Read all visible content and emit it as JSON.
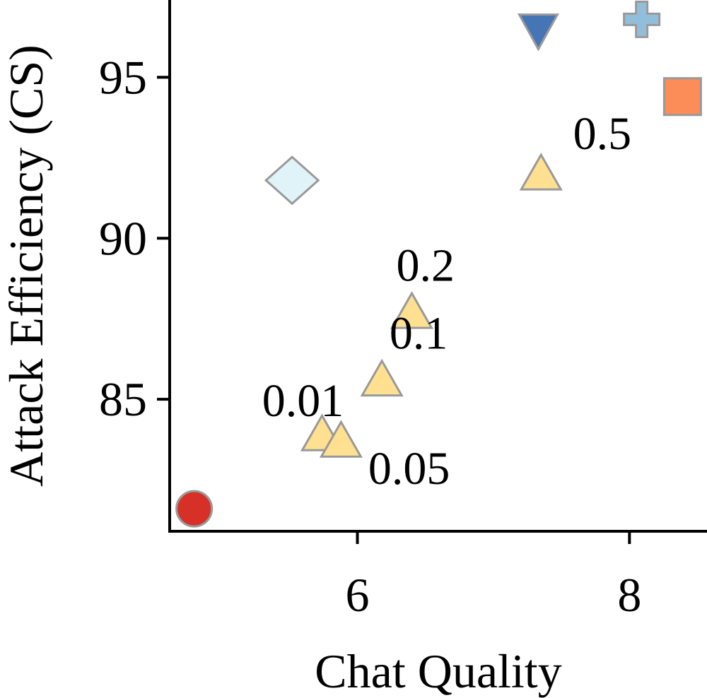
{
  "chart_data": {
    "type": "scatter",
    "xlabel": "Chat Quality",
    "ylabel": "Attack Efficiency (CS)",
    "xlim": [
      4.62,
      8.57
    ],
    "ylim": [
      80.9,
      97.4
    ],
    "x_ticks": [
      6,
      8
    ],
    "y_ticks": [
      85,
      90,
      95
    ],
    "x_tick_labels": [
      "6",
      "8"
    ],
    "y_tick_labels": [
      "85",
      "90",
      "95"
    ],
    "grid": false,
    "points": [
      {
        "x": 4.8,
        "y": 81.6,
        "marker": "circle",
        "color": "#d73027"
      },
      {
        "x": 5.52,
        "y": 91.8,
        "marker": "diamond",
        "color": "#e0f3f8"
      },
      {
        "x": 7.33,
        "y": 96.4,
        "marker": "triangle-down",
        "color": "#4575b4"
      },
      {
        "x": 8.09,
        "y": 96.8,
        "marker": "plus",
        "color": "#91bfdb"
      },
      {
        "x": 8.39,
        "y": 94.4,
        "marker": "square",
        "color": "#fc8d59"
      },
      {
        "x": 5.74,
        "y": 83.9,
        "marker": "triangle-up",
        "color": "#fee090",
        "label": "0.01"
      },
      {
        "x": 5.88,
        "y": 83.7,
        "marker": "triangle-up",
        "color": "#fee090",
        "label": "0.05"
      },
      {
        "x": 6.18,
        "y": 85.6,
        "marker": "triangle-up",
        "color": "#fee090",
        "label": "0.1"
      },
      {
        "x": 6.4,
        "y": 87.7,
        "marker": "triangle-up",
        "color": "#fee090",
        "label": "0.2"
      },
      {
        "x": 7.35,
        "y": 92.0,
        "marker": "triangle-up",
        "color": "#fee090",
        "label": "0.5"
      }
    ],
    "annotations": [
      {
        "text": "0.5",
        "x": 7.8,
        "y": 93.3
      },
      {
        "text": "0.2",
        "x": 6.5,
        "y": 89.2
      },
      {
        "text": "0.1",
        "x": 6.45,
        "y": 87.1
      },
      {
        "text": "0.01",
        "x": 5.6,
        "y": 85.0
      },
      {
        "text": "0.05",
        "x": 6.38,
        "y": 82.9
      }
    ],
    "marker_edge_color": "#999999"
  }
}
